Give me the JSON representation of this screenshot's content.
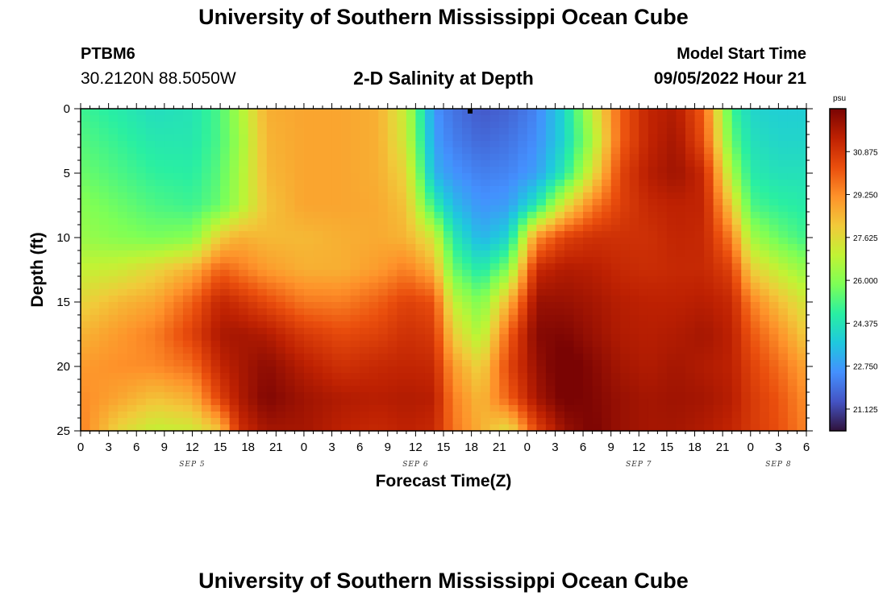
{
  "header": {
    "title": "University of Southern Mississippi Ocean Cube",
    "station": "PTBM6",
    "coords": "30.2120N  88.5050W",
    "subtitle": "2-D Salinity at Depth",
    "model_start_label": "Model Start Time",
    "model_start_value": "09/05/2022 Hour 21"
  },
  "footer": {
    "title": "University of Southern Mississippi Ocean Cube"
  },
  "chart_data": {
    "type": "heatmap",
    "title": "2-D Salinity at Depth",
    "xlabel": "Forecast Time(Z)",
    "ylabel": "Depth (ft)",
    "x_ticks": [
      "0",
      "3",
      "6",
      "9",
      "12",
      "15",
      "18",
      "21",
      "0",
      "3",
      "6",
      "9",
      "12",
      "15",
      "18",
      "21",
      "0",
      "3",
      "6",
      "9",
      "12",
      "15",
      "18",
      "21",
      "0",
      "3",
      "6"
    ],
    "x_range_hours": [
      0,
      78
    ],
    "day_labels": [
      {
        "label": "SEP 5",
        "hour": 12
      },
      {
        "label": "SEP 6",
        "hour": 36
      },
      {
        "label": "SEP 7",
        "hour": 60
      },
      {
        "label": "SEP 8",
        "hour": 75
      }
    ],
    "y_ticks": [
      "0",
      "5",
      "10",
      "15",
      "20",
      "25"
    ],
    "y_range_ft": [
      0,
      25
    ],
    "colorbar": {
      "unit": "psu",
      "range": [
        20.3,
        32.5
      ],
      "tick_labels": [
        "30.875",
        "29.250",
        "27.625",
        "26.000",
        "24.375",
        "22.750",
        "21.125"
      ],
      "colors": [
        "#30123b",
        "#4454c4",
        "#4490fe",
        "#1fc8de",
        "#29efa2",
        "#7dff56",
        "#c1f334",
        "#f1ca3a",
        "#fe922a",
        "#ea4e0d",
        "#be2102",
        "#7a0403"
      ]
    },
    "grid_resolution": {
      "time_hours": 1,
      "depth_ft": 0.5
    },
    "anchor_points_psu": {
      "depths_ft": [
        0,
        2.5,
        5,
        7.5,
        10,
        12.5,
        15,
        17.5,
        20,
        22.5,
        25
      ],
      "hours": [
        0,
        4,
        8,
        12,
        15,
        17,
        20,
        24,
        28,
        32,
        35,
        38,
        40,
        43,
        46,
        49,
        52,
        55,
        58,
        61,
        64,
        67,
        70,
        72,
        75,
        78
      ],
      "rows": [
        [
          25.0,
          24.6,
          24.2,
          24.4,
          25.2,
          26.5,
          28.6,
          28.8,
          28.8,
          28.6,
          27.0,
          22.6,
          22.0,
          21.5,
          21.7,
          22.3,
          24.0,
          27.0,
          30.0,
          31.3,
          31.6,
          30.0,
          25.0,
          24.0,
          23.8,
          23.8
        ],
        [
          25.3,
          24.9,
          24.5,
          24.5,
          25.2,
          26.3,
          28.5,
          28.8,
          28.8,
          28.6,
          27.2,
          22.8,
          22.2,
          21.8,
          22.0,
          22.5,
          24.0,
          26.5,
          30.0,
          31.3,
          31.8,
          30.3,
          25.5,
          24.3,
          24.0,
          24.0
        ],
        [
          25.6,
          25.2,
          24.8,
          24.7,
          25.4,
          26.5,
          28.4,
          28.8,
          28.8,
          28.6,
          27.8,
          23.2,
          22.6,
          22.2,
          22.3,
          22.8,
          24.6,
          27.5,
          30.5,
          31.5,
          31.9,
          31.2,
          26.5,
          24.6,
          24.3,
          24.3
        ],
        [
          26.0,
          25.6,
          25.2,
          25.0,
          25.6,
          26.6,
          28.2,
          28.8,
          28.8,
          28.7,
          28.2,
          24.8,
          23.4,
          22.6,
          22.8,
          24.5,
          27.5,
          29.5,
          30.6,
          31.2,
          31.4,
          31.3,
          28.0,
          25.2,
          24.8,
          24.6
        ],
        [
          26.3,
          26.0,
          25.8,
          26.0,
          28.0,
          28.6,
          28.4,
          28.4,
          28.6,
          28.7,
          28.5,
          27.3,
          24.6,
          23.2,
          24.0,
          29.2,
          30.6,
          31.0,
          31.0,
          31.0,
          31.3,
          31.2,
          29.5,
          26.5,
          25.6,
          25.0
        ],
        [
          27.0,
          27.2,
          27.8,
          28.6,
          30.0,
          29.6,
          29.0,
          28.6,
          28.6,
          29.0,
          29.5,
          28.6,
          25.6,
          24.5,
          26.0,
          31.2,
          31.6,
          31.5,
          31.2,
          31.1,
          31.2,
          31.2,
          30.6,
          28.0,
          27.0,
          26.2
        ],
        [
          27.8,
          28.4,
          28.8,
          30.0,
          31.3,
          31.0,
          30.4,
          29.6,
          29.5,
          30.0,
          30.6,
          30.3,
          27.0,
          25.8,
          28.5,
          32.0,
          32.0,
          31.8,
          31.5,
          31.4,
          31.4,
          31.5,
          31.2,
          29.5,
          28.3,
          27.3
        ],
        [
          28.5,
          29.0,
          29.5,
          30.6,
          31.7,
          31.8,
          31.6,
          30.8,
          30.4,
          30.6,
          31.0,
          30.8,
          28.0,
          26.6,
          30.0,
          32.3,
          32.4,
          32.0,
          31.6,
          31.5,
          31.6,
          31.8,
          31.4,
          30.2,
          29.2,
          28.0
        ],
        [
          29.0,
          29.2,
          29.3,
          29.8,
          31.3,
          31.7,
          32.2,
          31.5,
          31.0,
          31.2,
          31.3,
          31.2,
          29.0,
          27.8,
          30.5,
          32.0,
          32.8,
          32.3,
          31.8,
          31.6,
          31.8,
          31.6,
          31.4,
          30.6,
          29.8,
          28.8
        ],
        [
          29.3,
          28.8,
          28.2,
          28.6,
          30.6,
          31.6,
          32.4,
          31.9,
          31.6,
          31.5,
          31.6,
          31.5,
          29.5,
          28.4,
          30.0,
          31.8,
          32.6,
          32.4,
          32.0,
          31.8,
          31.9,
          31.8,
          31.5,
          30.8,
          30.2,
          29.2
        ],
        [
          29.5,
          27.8,
          27.0,
          27.2,
          28.2,
          31.0,
          31.8,
          31.8,
          31.4,
          31.2,
          31.4,
          31.2,
          29.7,
          28.6,
          27.5,
          30.5,
          32.0,
          32.5,
          32.0,
          31.8,
          31.8,
          31.6,
          31.3,
          30.8,
          30.3,
          29.4
        ]
      ]
    }
  }
}
